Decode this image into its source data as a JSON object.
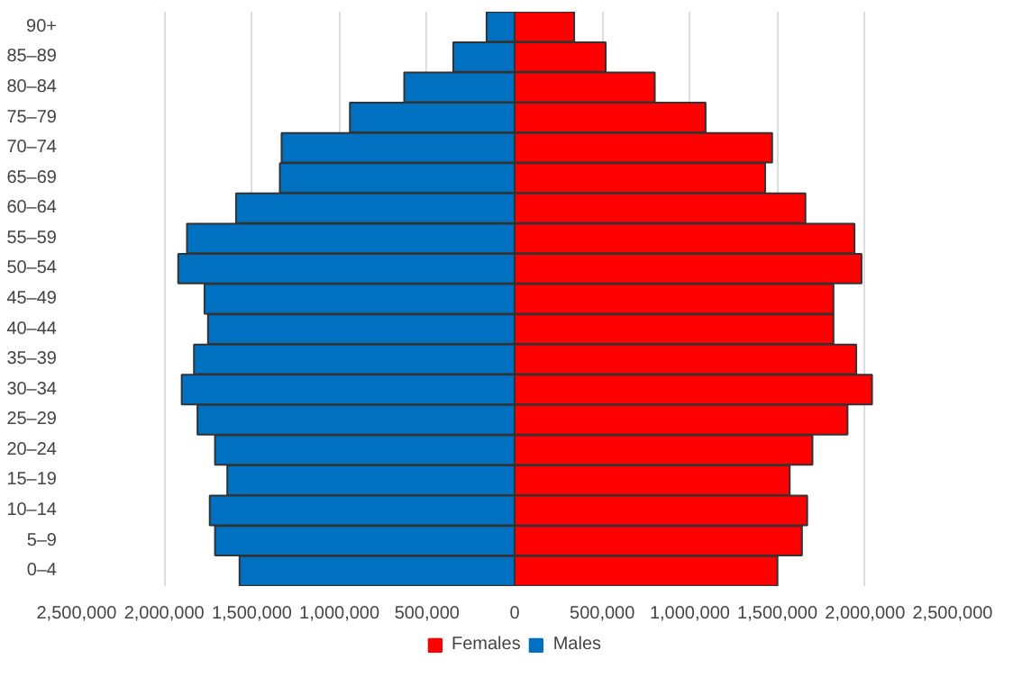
{
  "chart_data": {
    "type": "bar",
    "orientation": "horizontal",
    "stacked": true,
    "categories": [
      "90+",
      "85–89",
      "80–84",
      "75–79",
      "70–74",
      "65–69",
      "60–64",
      "55–59",
      "50–54",
      "45–49",
      "40–44",
      "35–39",
      "30–34",
      "25–29",
      "20–24",
      "15–19",
      "10–14",
      "5–9",
      "0–4"
    ],
    "series": [
      {
        "name": "Females",
        "color": "#ff0000",
        "values": [
          340000,
          520000,
          800000,
          1090000,
          1470000,
          1430000,
          1660000,
          1940000,
          1980000,
          1820000,
          1820000,
          1950000,
          2040000,
          1900000,
          1700000,
          1570000,
          1670000,
          1640000,
          1500000
        ]
      },
      {
        "name": "Males",
        "color": "#0070c0",
        "values": [
          -160000,
          -350000,
          -630000,
          -940000,
          -1330000,
          -1340000,
          -1590000,
          -1870000,
          -1920000,
          -1770000,
          -1750000,
          -1830000,
          -1900000,
          -1810000,
          -1710000,
          -1640000,
          -1740000,
          -1710000,
          -1570000
        ]
      }
    ],
    "xlim": [
      -2500000,
      2500000
    ],
    "xticks": [
      {
        "value": -2500000,
        "label": "2,500,000"
      },
      {
        "value": -2000000,
        "label": "2,000,000"
      },
      {
        "value": -1500000,
        "label": "1,500,000"
      },
      {
        "value": -1000000,
        "label": "1,000,000"
      },
      {
        "value": -500000,
        "label": "500,000"
      },
      {
        "value": 0,
        "label": "0"
      },
      {
        "value": 500000,
        "label": "500,000"
      },
      {
        "value": 1000000,
        "label": "1,000,000"
      },
      {
        "value": 1500000,
        "label": "1,500,000"
      },
      {
        "value": 2000000,
        "label": "2,000,000"
      },
      {
        "value": 2500000,
        "label": "2,500,000"
      }
    ],
    "grid": "x",
    "legend": "bottom"
  }
}
